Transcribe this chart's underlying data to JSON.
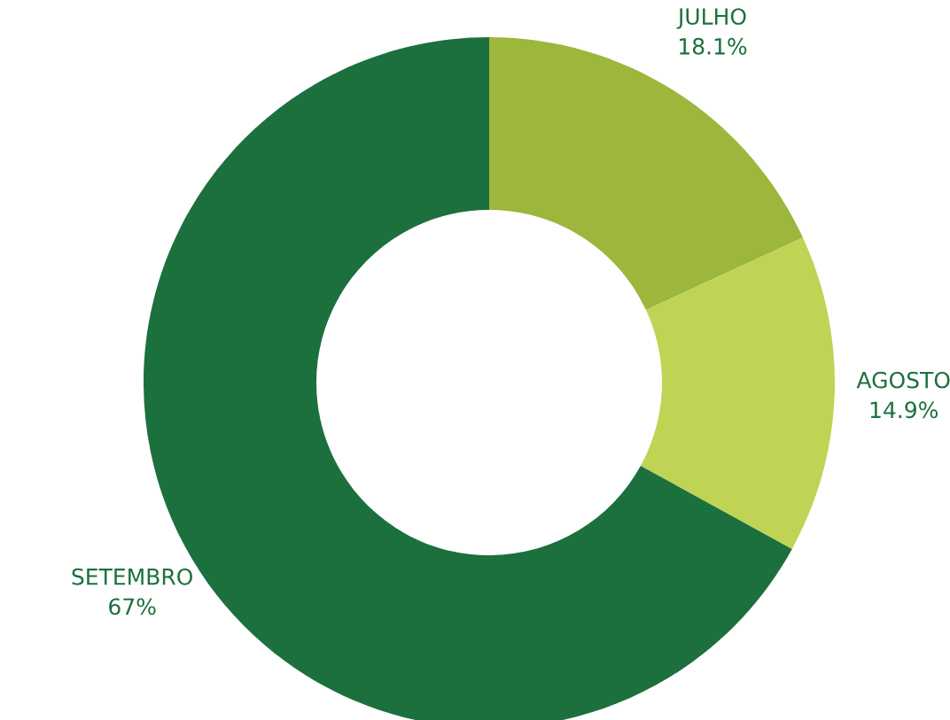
{
  "chart_data": {
    "type": "donut",
    "categories": [
      "JULHO",
      "AGOSTO",
      "SETEMBRO"
    ],
    "values": [
      18.1,
      14.9,
      67
    ],
    "colors": [
      "#9cb73c",
      "#bfd455",
      "#1c703e"
    ],
    "value_labels": [
      "18.1%",
      "14.9%",
      "67%"
    ],
    "legend": false
  }
}
